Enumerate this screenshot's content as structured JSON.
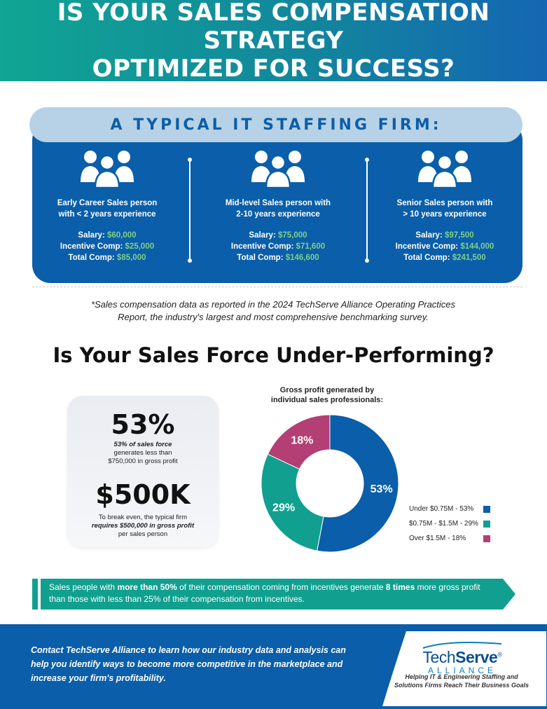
{
  "header": {
    "title_line1": "IS YOUR SALES COMPENSATION STRATEGY",
    "title_line2": "OPTIMIZED FOR SUCCESS?"
  },
  "firm": {
    "heading": "A TYPICAL IT STAFFING FIRM:",
    "icon": "group-of-people-icon",
    "salary_label": "Salary:",
    "incentive_label": "Incentive Comp:",
    "total_label": "Total Comp:",
    "levels": [
      {
        "line1": "Early Career Sales person",
        "line2": "with < 2 years experience",
        "salary": "$60,000",
        "incentive": "$25,000",
        "total": "$85,000"
      },
      {
        "line1": "Mid-level Sales person with",
        "line2": "2-10 years experience",
        "salary": "$75,000",
        "incentive": "$71,600",
        "total": "$146,600"
      },
      {
        "line1": "Senior Sales person with",
        "line2": "> 10 years experience",
        "salary": "$97,500",
        "incentive": "$144,000",
        "total": "$241,500"
      }
    ]
  },
  "footnote": {
    "line1": "*Sales compensation data as reported in the 2024 TechServe Alliance Operating Practices",
    "line2": "Report, the industry's largest and most comprehensive benchmarking survey."
  },
  "section_title": "Is Your Sales Force Under-Performing?",
  "stats": {
    "big1": "53%",
    "small1_bold": "53% of sales force",
    "small1_rest": "generates less than",
    "small1_line3": "$750,000 in gross profit",
    "big2": "$500K",
    "small2_line1": "To break even, the typical firm",
    "small2_bold": "requires $500,000 in gross profit",
    "small2_line3": "per sales person"
  },
  "chart_data": {
    "type": "pie",
    "title": "Gross profit generated by individual sales professionals:",
    "title_line1": "Gross profit generated by",
    "title_line2": "individual sales professionals:",
    "donut": true,
    "legend_position": "right",
    "slices": [
      {
        "label": "Under $0.75M - 53%",
        "value": 53,
        "data_label": "53%",
        "color": "#0b5ea9"
      },
      {
        "label": "$0.75M - $1.5M - 29%",
        "value": 29,
        "data_label": "29%",
        "color": "#11a08f"
      },
      {
        "label": "Over $1.5M - 18%",
        "value": 18,
        "data_label": "18%",
        "color": "#b33f74"
      }
    ]
  },
  "callout": {
    "pre": "Sales people with ",
    "bold1": "more than 50%",
    "mid": " of their compensation coming from incentives generate ",
    "bold2": "8 times",
    "post": " more gross profit than those with less than 25% of their compensation from incentives.",
    "color": "#11a08f"
  },
  "footer": {
    "bold": "Contact TechServe Alliance",
    "rest": " to learn how our industry data and analysis can help you identify ways to become more competitive in the marketplace and increase your firm's profitability.",
    "logo_tech": "Tech",
    "logo_serve": "Serve",
    "logo_reg": "®",
    "logo_sub": "ALLIANCE",
    "tagline_line1": "Helping IT & Engineering Staffing and",
    "tagline_line2": "Solutions Firms Reach Their Business Goals"
  }
}
